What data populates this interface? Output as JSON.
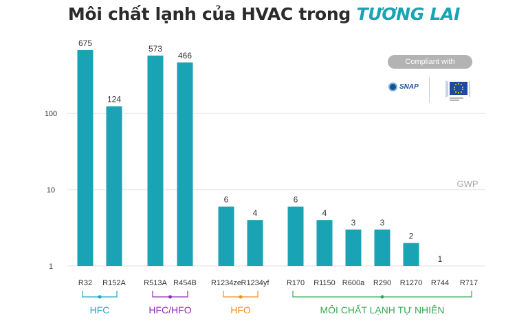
{
  "title_main": "Môi chất lạnh của HVAC trong ",
  "title_accent": "TƯƠNG LAI",
  "compliance_label": "Compliant with",
  "logos": {
    "snap": "SNAP",
    "eu": "eu-commission-logo"
  },
  "colors": {
    "bar": "#1aa3b4",
    "hfc": "#19a9c1",
    "hfc_hfo": "#8e2ab8",
    "hfo": "#f28c1c",
    "natural": "#33aa55",
    "title_accent": "#1aa3b4"
  },
  "chart_data": {
    "type": "bar",
    "yscale": "log",
    "ylim": [
      1,
      1000
    ],
    "yticks": [
      1,
      10,
      100
    ],
    "ylabel": "GWP",
    "grid": true,
    "categories": [
      "R32",
      "R152A",
      "R513A",
      "R454B",
      "R1234ze",
      "R1234yf",
      "R170",
      "R1150",
      "R600a",
      "R290",
      "R1270",
      "R744",
      "R717"
    ],
    "values": [
      675,
      124,
      573,
      466,
      6,
      4,
      6,
      4,
      3,
      3,
      2,
      1,
      0
    ],
    "value_labels": [
      "675",
      "124",
      "573",
      "466",
      "6",
      "4",
      "6",
      "4",
      "3",
      "3",
      "2",
      "1",
      ""
    ],
    "groups": [
      {
        "name": "HFC",
        "start": 0,
        "end": 1,
        "color": "#19a9c1"
      },
      {
        "name": "HFC/HFO",
        "start": 2,
        "end": 3,
        "color": "#8e2ab8"
      },
      {
        "name": "HFO",
        "start": 4,
        "end": 5,
        "color": "#f28c1c"
      },
      {
        "name": "MÔI CHẤT LẠNH TỰ NHIÊN",
        "start": 6,
        "end": 12,
        "color": "#33aa55"
      }
    ]
  }
}
